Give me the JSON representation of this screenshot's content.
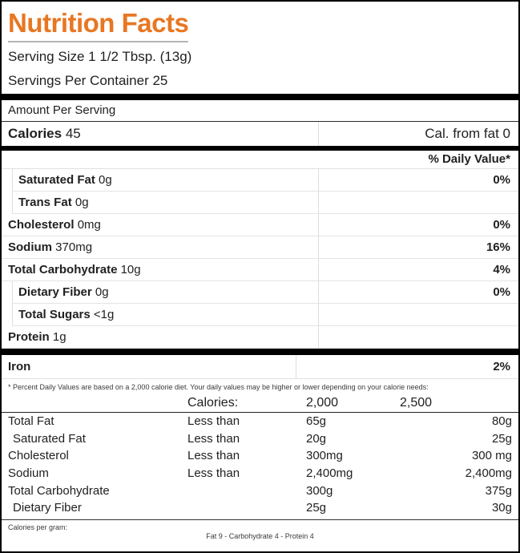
{
  "title": "Nutrition Facts",
  "serving": {
    "size": "Serving Size 1 1/2 Tbsp. (13g)",
    "per_container": "Servings Per Container 25"
  },
  "amount_per_serving": "Amount Per Serving",
  "calories": {
    "label": "Calories",
    "value": "45",
    "from_fat": "Cal. from fat 0"
  },
  "daily_value_header": "% Daily Value*",
  "nutrients": [
    {
      "label": "Saturated Fat",
      "amount": "0g",
      "dv": "0%",
      "indent": true
    },
    {
      "label": "Trans Fat",
      "amount": "0g",
      "dv": "",
      "indent": true
    },
    {
      "label": "Cholesterol",
      "amount": "0mg",
      "dv": "0%",
      "indent": false
    },
    {
      "label": "Sodium",
      "amount": "370mg",
      "dv": "16%",
      "indent": false
    },
    {
      "label": "Total Carbohydrate",
      "amount": "10g",
      "dv": "4%",
      "indent": false
    },
    {
      "label": "Dietary Fiber",
      "amount": "0g",
      "dv": "0%",
      "indent": true
    },
    {
      "label": "Total Sugars",
      "amount": "<1g",
      "dv": "",
      "indent": true
    },
    {
      "label": "Protein",
      "amount": "1g",
      "dv": "",
      "indent": false
    }
  ],
  "minerals": [
    {
      "label": "Iron",
      "dv": "2%"
    }
  ],
  "footnote": "* Percent Daily Values are based on a 2,000 calorie diet. Your daily values may be higher or lower depending on your calorie needs:",
  "reference_table": {
    "header": {
      "calories_label": "Calories:",
      "col_2000": "2,000",
      "col_2500": "2,500"
    },
    "rows": [
      {
        "label": "Total Fat",
        "qualifier": "Less than",
        "v2000": "65g",
        "v2500": "80g",
        "indent": false
      },
      {
        "label": "Saturated Fat",
        "qualifier": "Less than",
        "v2000": "20g",
        "v2500": "25g",
        "indent": true
      },
      {
        "label": "Cholesterol",
        "qualifier": "Less than",
        "v2000": "300mg",
        "v2500": "300 mg",
        "indent": false
      },
      {
        "label": "Sodium",
        "qualifier": "Less than",
        "v2000": "2,400mg",
        "v2500": "2,400mg",
        "indent": false
      },
      {
        "label": "Total Carbohydrate",
        "qualifier": "",
        "v2000": "300g",
        "v2500": "375g",
        "indent": false
      },
      {
        "label": "Dietary Fiber",
        "qualifier": "",
        "v2000": "25g",
        "v2500": "30g",
        "indent": true
      }
    ]
  },
  "calories_per_gram": {
    "label": "Calories per gram:",
    "values": "Fat 9 - Carbohydrate 4 - Protein 4"
  },
  "colors": {
    "accent": "#E87722",
    "text": "#212121",
    "divider_light": "#dddddd",
    "divider_dark": "#2b2b2b",
    "bar": "#000000"
  }
}
